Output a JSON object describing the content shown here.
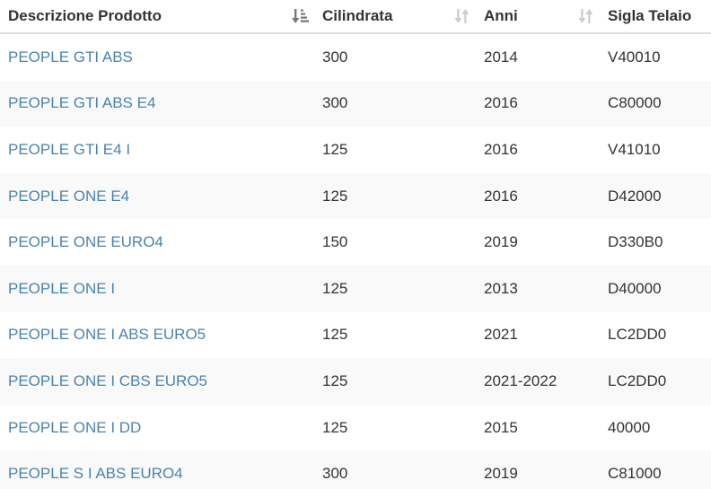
{
  "columns": {
    "descrizione": "Descrizione Prodotto",
    "cilindrata": "Cilindrata",
    "anni": "Anni",
    "sigla": "Sigla Telaio"
  },
  "rows": [
    {
      "descrizione": "PEOPLE GTI ABS",
      "cilindrata": "300",
      "anni": "2014",
      "sigla": "V40010"
    },
    {
      "descrizione": "PEOPLE GTI ABS E4",
      "cilindrata": "300",
      "anni": "2016",
      "sigla": "C80000"
    },
    {
      "descrizione": "PEOPLE GTI E4 I",
      "cilindrata": "125",
      "anni": "2016",
      "sigla": "V41010"
    },
    {
      "descrizione": "PEOPLE ONE E4",
      "cilindrata": "125",
      "anni": "2016",
      "sigla": "D42000"
    },
    {
      "descrizione": "PEOPLE ONE EURO4",
      "cilindrata": "150",
      "anni": "2019",
      "sigla": "D330B0"
    },
    {
      "descrizione": "PEOPLE ONE I",
      "cilindrata": "125",
      "anni": "2013",
      "sigla": "D40000"
    },
    {
      "descrizione": "PEOPLE ONE I ABS EURO5",
      "cilindrata": "125",
      "anni": "2021",
      "sigla": "LC2DD0"
    },
    {
      "descrizione": "PEOPLE ONE I CBS EURO5",
      "cilindrata": "125",
      "anni": "2021-2022",
      "sigla": "LC2DD0"
    },
    {
      "descrizione": "PEOPLE ONE I DD",
      "cilindrata": "125",
      "anni": "2015",
      "sigla": "40000"
    },
    {
      "descrizione": "PEOPLE S I ABS EURO4",
      "cilindrata": "300",
      "anni": "2019",
      "sigla": "C81000"
    }
  ],
  "sort": {
    "active_column": "descrizione",
    "direction": "ascending",
    "active_icon": "sort-amount-ascending-icon",
    "inactive_icon": "sort-both-icon"
  },
  "colors": {
    "link": "#4b83ad",
    "text": "#333333",
    "header_border": "#dddddd",
    "stripe": "#f9f9f9",
    "icon_active": "#777777",
    "icon_inactive": "#cccccc"
  }
}
